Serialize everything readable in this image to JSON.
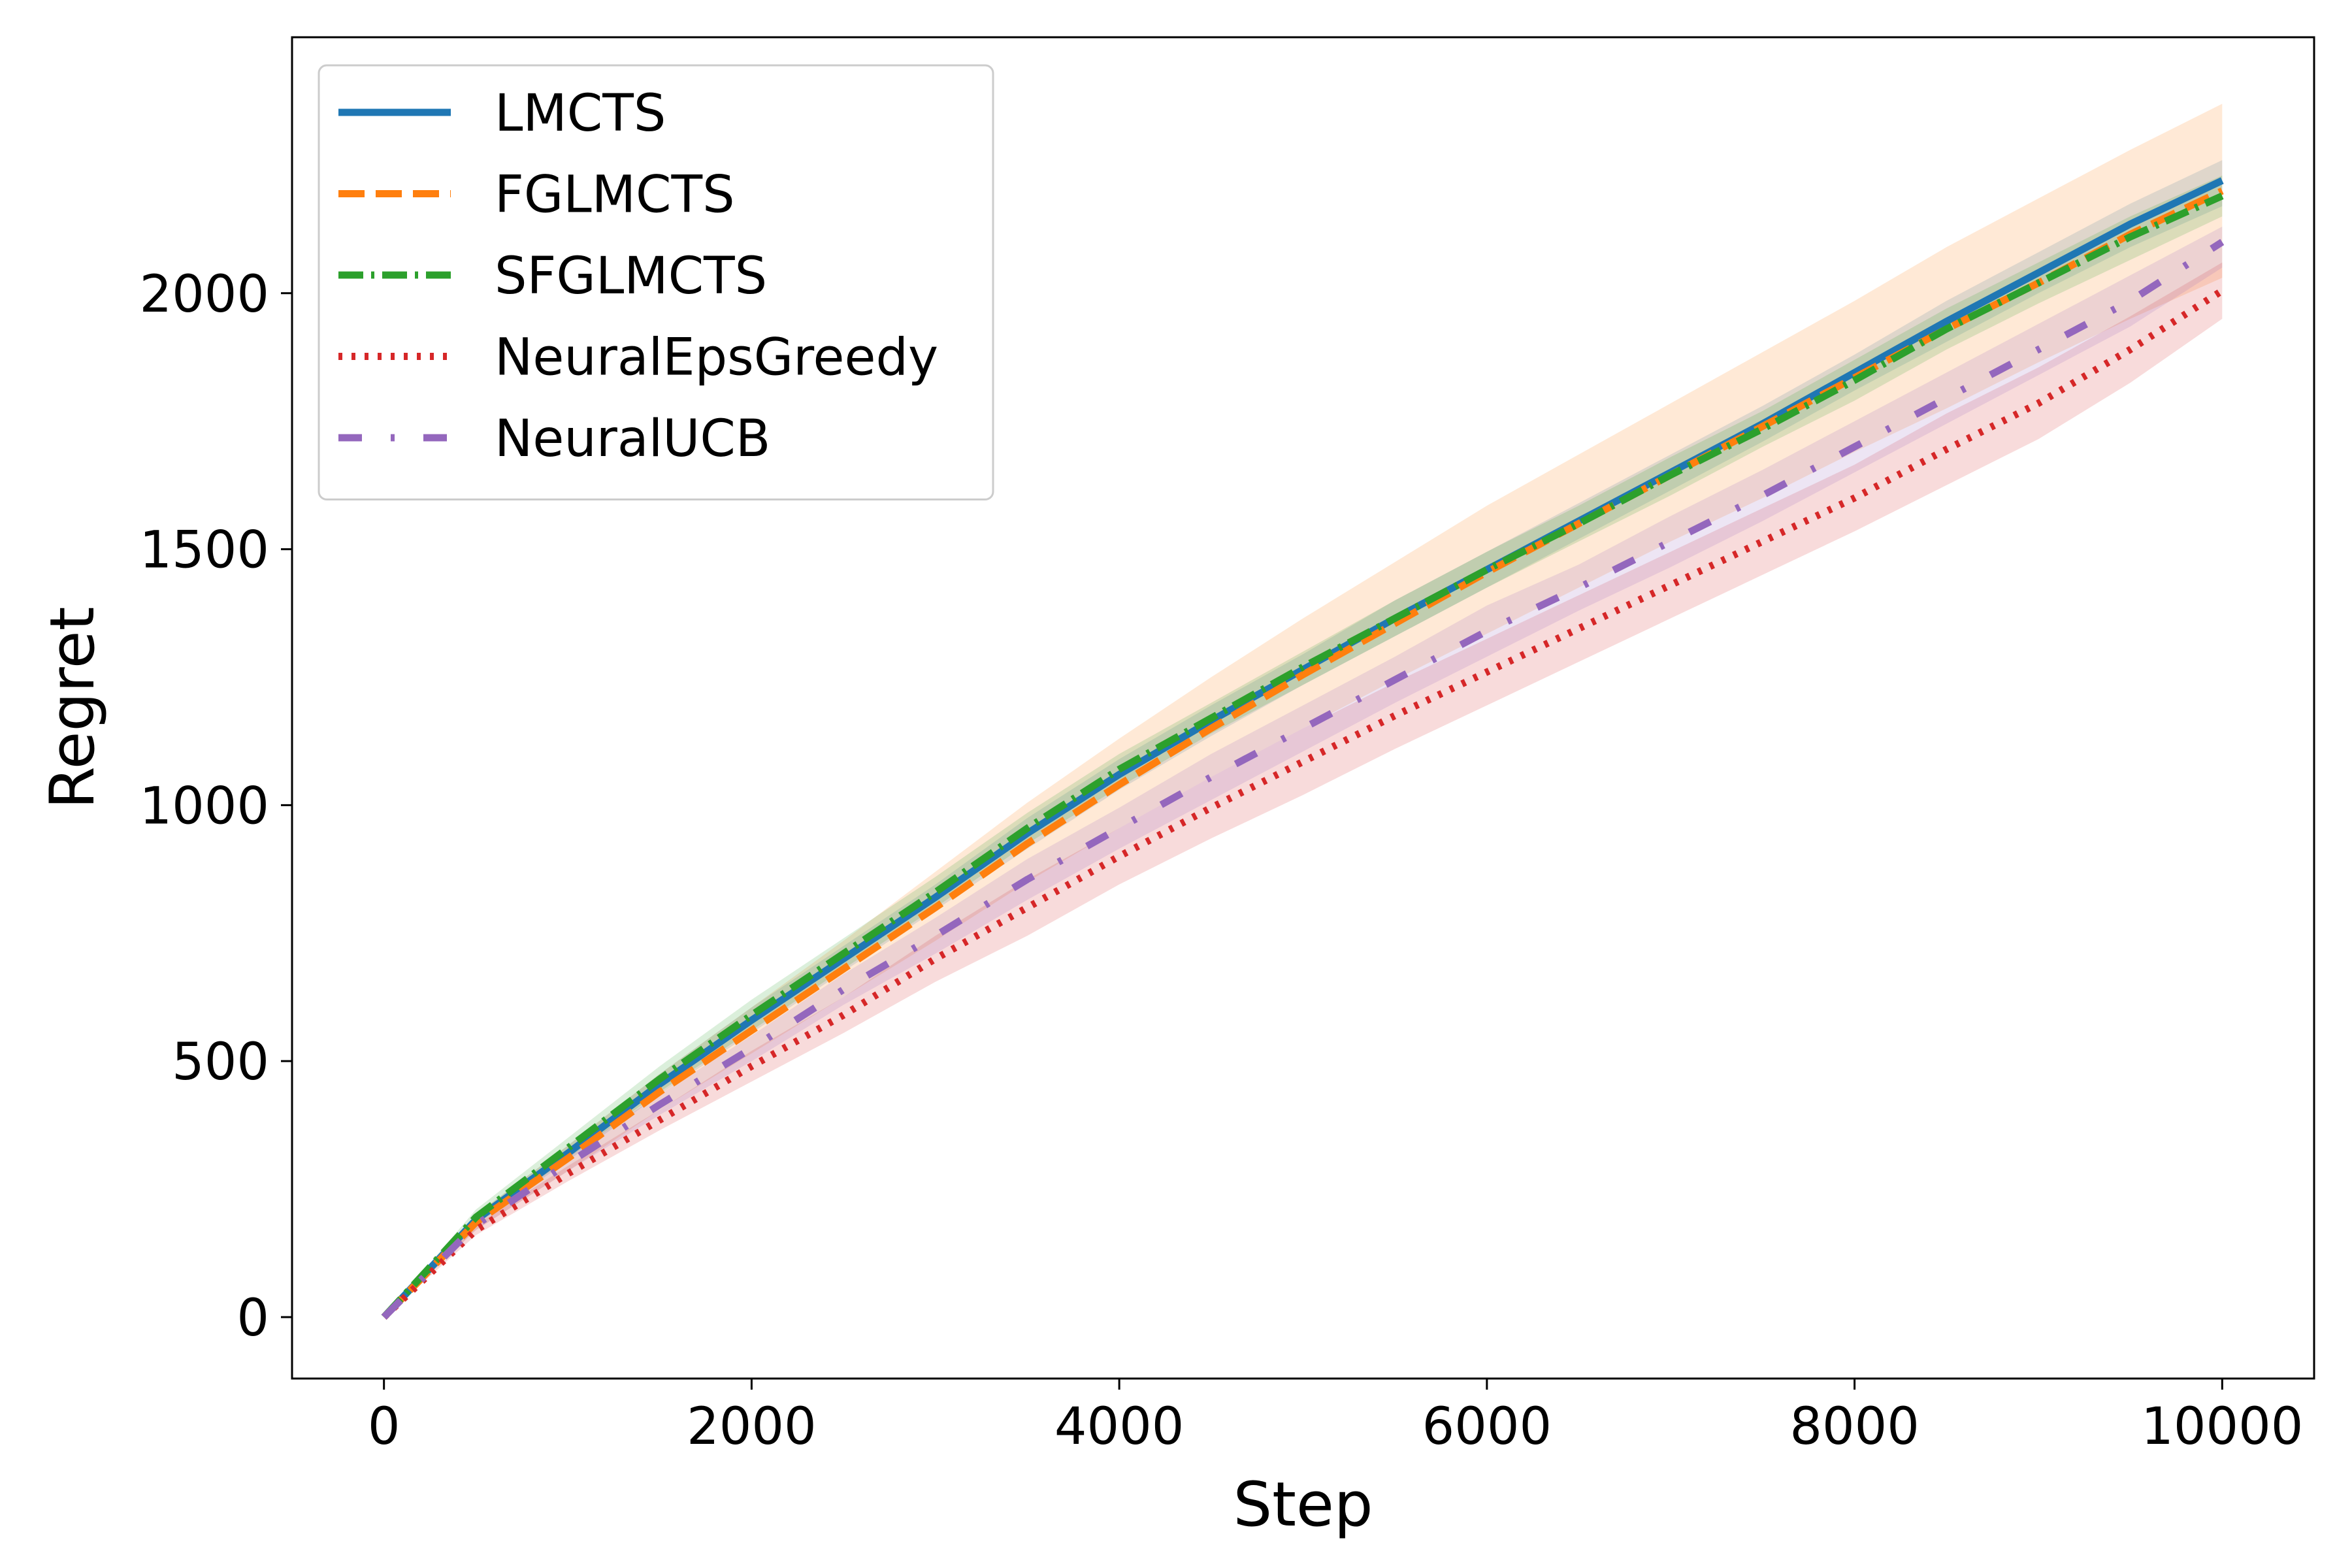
{
  "chart_data": {
    "type": "line",
    "title": "",
    "xlabel": "Step",
    "ylabel": "Regret",
    "xlim": [
      -500,
      10500
    ],
    "ylim": [
      -120,
      2500
    ],
    "xticks": [
      0,
      2000,
      4000,
      6000,
      8000,
      10000
    ],
    "yticks": [
      0,
      500,
      1000,
      1500,
      2000
    ],
    "grid": false,
    "legend_position": "top-left",
    "x": [
      0,
      500,
      1000,
      1500,
      2000,
      2500,
      3000,
      3500,
      4000,
      4500,
      5000,
      5500,
      6000,
      6500,
      7000,
      7500,
      8000,
      8500,
      9000,
      9500,
      10000
    ],
    "series": [
      {
        "name": "LMCTS",
        "color": "#1f77b4",
        "style": "solid",
        "values": [
          0,
          190,
          320,
          455,
          580,
          700,
          820,
          945,
          1060,
          1165,
          1265,
          1365,
          1460,
          1555,
          1650,
          1745,
          1845,
          1945,
          2040,
          2135,
          2220
        ],
        "lower": [
          0,
          180,
          305,
          435,
          555,
          675,
          795,
          915,
          1030,
          1135,
          1235,
          1330,
          1425,
          1520,
          1615,
          1710,
          1810,
          1905,
          2000,
          2090,
          2170
        ],
        "upper": [
          0,
          200,
          335,
          475,
          605,
          725,
          845,
          975,
          1090,
          1195,
          1295,
          1400,
          1495,
          1590,
          1685,
          1780,
          1880,
          1985,
          2080,
          2175,
          2260
        ]
      },
      {
        "name": "FGLMCTS",
        "color": "#ff7f0e",
        "style": "dashed",
        "values": [
          0,
          185,
          310,
          440,
          560,
          680,
          800,
          925,
          1040,
          1150,
          1255,
          1355,
          1455,
          1550,
          1645,
          1740,
          1835,
          1930,
          2020,
          2115,
          2200
        ],
        "lower": [
          0,
          170,
          285,
          405,
          515,
          625,
          735,
          850,
          955,
          1055,
          1150,
          1245,
          1335,
          1425,
          1515,
          1600,
          1690,
          1775,
          1865,
          1950,
          2030
        ],
        "upper": [
          0,
          200,
          335,
          475,
          605,
          735,
          870,
          1005,
          1130,
          1250,
          1365,
          1475,
          1585,
          1685,
          1785,
          1885,
          1985,
          2090,
          2185,
          2280,
          2370
        ]
      },
      {
        "name": "SFGLMCTS",
        "color": "#2ca02c",
        "style": "dashdot",
        "values": [
          0,
          195,
          330,
          465,
          590,
          710,
          830,
          955,
          1070,
          1170,
          1270,
          1365,
          1460,
          1550,
          1645,
          1735,
          1830,
          1930,
          2020,
          2110,
          2190
        ],
        "lower": [
          0,
          180,
          310,
          440,
          560,
          680,
          800,
          925,
          1035,
          1140,
          1235,
          1330,
          1425,
          1515,
          1605,
          1700,
          1790,
          1890,
          1980,
          2065,
          2150
        ],
        "upper": [
          0,
          210,
          350,
          490,
          620,
          740,
          860,
          985,
          1100,
          1200,
          1300,
          1400,
          1495,
          1585,
          1680,
          1770,
          1870,
          1970,
          2060,
          2150,
          2230
        ]
      },
      {
        "name": "NeuralEpsGreedy",
        "color": "#d62728",
        "style": "dotted",
        "values": [
          0,
          170,
          280,
          385,
          490,
          590,
          700,
          800,
          900,
          995,
          1085,
          1175,
          1260,
          1345,
          1430,
          1515,
          1600,
          1695,
          1785,
          1890,
          2005
        ],
        "lower": [
          0,
          160,
          265,
          365,
          460,
          555,
          655,
          745,
          845,
          935,
          1020,
          1110,
          1195,
          1280,
          1365,
          1450,
          1535,
          1625,
          1715,
          1825,
          1950
        ],
        "upper": [
          0,
          180,
          295,
          405,
          520,
          625,
          745,
          855,
          955,
          1055,
          1150,
          1240,
          1325,
          1410,
          1495,
          1580,
          1665,
          1765,
          1855,
          1955,
          2060
        ]
      },
      {
        "name": "NeuralUCB",
        "color": "#9467bd",
        "style": "loosedash",
        "values": [
          0,
          180,
          300,
          415,
          525,
          640,
          745,
          855,
          955,
          1055,
          1150,
          1245,
          1340,
          1425,
          1515,
          1605,
          1700,
          1795,
          1890,
          1985,
          2100
        ],
        "lower": [
          0,
          170,
          285,
          395,
          500,
          610,
          710,
          815,
          915,
          1010,
          1105,
          1200,
          1290,
          1380,
          1465,
          1555,
          1650,
          1745,
          1840,
          1935,
          2050
        ],
        "upper": [
          0,
          190,
          315,
          435,
          550,
          670,
          780,
          895,
          995,
          1100,
          1195,
          1290,
          1390,
          1470,
          1565,
          1655,
          1750,
          1845,
          1940,
          2035,
          2130
        ]
      }
    ]
  }
}
